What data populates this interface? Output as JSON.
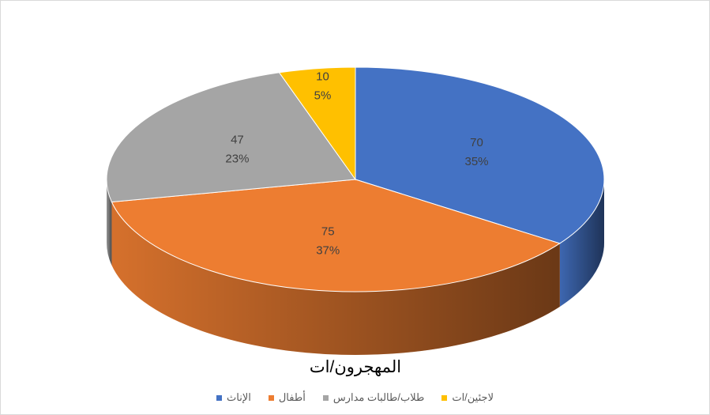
{
  "chart_data": {
    "type": "pie3d",
    "title": "المهجرون/ات",
    "categories": [
      "الإناث",
      "أطفال",
      "طلاب/طالبات مدارس",
      "لاجئين/ات"
    ],
    "values": [
      70,
      75,
      47,
      10
    ],
    "percent_labels": [
      "35%",
      "37%",
      "23%",
      "5%"
    ],
    "colors": [
      "#4472c4",
      "#ed7d31",
      "#a5a5a5",
      "#ffc000"
    ],
    "legend": "bottom"
  }
}
